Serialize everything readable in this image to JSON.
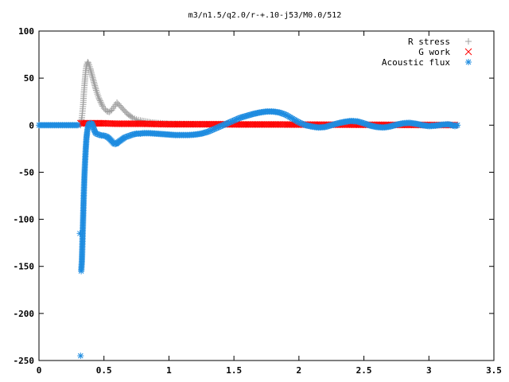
{
  "chart_data": {
    "type": "scatter",
    "title": "m3/n1.5/q2.0/r-+.10-j53/M0.0/512",
    "xlabel": "",
    "ylabel": "",
    "xlim": [
      0,
      3.5
    ],
    "ylim": [
      -250,
      100
    ],
    "x_ticks": [
      "0",
      "0.5",
      "1",
      "1.5",
      "2",
      "2.5",
      "3",
      "3.5"
    ],
    "y_ticks": [
      "100",
      "50",
      "0",
      "-50",
      "-100",
      "-150",
      "-200",
      "-250"
    ],
    "x_tick_values": [
      0,
      0.5,
      1,
      1.5,
      2,
      2.5,
      3,
      3.5
    ],
    "y_tick_values": [
      100,
      50,
      0,
      -50,
      -100,
      -150,
      -200,
      -250
    ],
    "grid": false,
    "legend_position": "top-right",
    "series": [
      {
        "name": "R stress",
        "marker": "plus",
        "color": "#a0a0a0",
        "x": [
          0.32,
          0.33,
          0.335,
          0.34,
          0.345,
          0.35,
          0.355,
          0.36,
          0.365,
          0.37,
          0.375,
          0.38,
          0.385,
          0.39,
          0.395,
          0.4,
          0.41,
          0.42,
          0.43,
          0.44,
          0.45,
          0.46,
          0.47,
          0.48,
          0.49,
          0.5,
          0.52,
          0.54,
          0.56,
          0.58,
          0.59,
          0.6,
          0.62,
          0.64,
          0.66,
          0.68,
          0.7,
          0.72,
          0.75,
          0.78,
          0.82,
          0.86,
          0.9,
          0.95,
          1.0,
          1.1,
          1.2,
          1.4,
          1.6,
          1.8,
          2.0,
          2.2,
          2.4,
          2.6,
          2.8,
          3.0,
          3.2
        ],
        "y": [
          0,
          8,
          15,
          22,
          33,
          42,
          50,
          58,
          62,
          65,
          67,
          66,
          64,
          62,
          60,
          57,
          52,
          47,
          42,
          37,
          33,
          29,
          26,
          23,
          20,
          18,
          15,
          14,
          16,
          20,
          22,
          24,
          21,
          18,
          15,
          12,
          10,
          8,
          6,
          5,
          4,
          3,
          2.5,
          2,
          1.5,
          1.2,
          1,
          0.8,
          0.7,
          0.7,
          0.6,
          0.5,
          0.5,
          0.4,
          0.4,
          0.3,
          0.3
        ]
      },
      {
        "name": "G work",
        "marker": "cross",
        "color": "#ff0000",
        "x": [
          0.32,
          0.35,
          0.38,
          0.4,
          0.45,
          0.5,
          0.6,
          0.7,
          0.8,
          0.9,
          1.0,
          1.1,
          1.2,
          1.3,
          1.4,
          1.5,
          1.6,
          1.7,
          1.8,
          1.9,
          2.0,
          2.1,
          2.2,
          2.3,
          2.4,
          2.5,
          2.6,
          2.7,
          2.8,
          2.9,
          3.0,
          3.1,
          3.2
        ],
        "y": [
          2,
          2,
          2,
          2,
          2,
          2,
          1.5,
          1.5,
          1.5,
          1.2,
          1,
          1,
          1,
          1,
          1,
          0.8,
          0.8,
          0.8,
          0.8,
          0.7,
          0.6,
          0.6,
          0.5,
          0.5,
          0.5,
          0.4,
          0.4,
          0.3,
          0.3,
          0.3,
          0.2,
          0.2,
          0.2
        ]
      },
      {
        "name": "Acoustic flux",
        "marker": "star",
        "color": "#1e8ce0",
        "x": [
          0,
          0.05,
          0.1,
          0.15,
          0.2,
          0.25,
          0.3,
          0.315,
          0.32,
          0.325,
          0.33,
          0.335,
          0.34,
          0.345,
          0.35,
          0.355,
          0.36,
          0.365,
          0.37,
          0.375,
          0.38,
          0.385,
          0.39,
          0.4,
          0.41,
          0.42,
          0.43,
          0.44,
          0.46,
          0.48,
          0.5,
          0.52,
          0.54,
          0.56,
          0.58,
          0.59,
          0.6,
          0.62,
          0.64,
          0.66,
          0.68,
          0.7,
          0.72,
          0.75,
          0.78,
          0.8,
          0.85,
          0.9,
          0.95,
          1.0,
          1.05,
          1.1,
          1.15,
          1.2,
          1.25,
          1.3,
          1.35,
          1.4,
          1.45,
          1.5,
          1.55,
          1.6,
          1.65,
          1.7,
          1.75,
          1.8,
          1.85,
          1.9,
          1.95,
          2.0,
          2.05,
          2.1,
          2.15,
          2.2,
          2.25,
          2.3,
          2.35,
          2.4,
          2.45,
          2.5,
          2.55,
          2.6,
          2.65,
          2.7,
          2.75,
          2.8,
          2.85,
          2.9,
          2.95,
          3.0,
          3.05,
          3.1,
          3.15,
          3.18,
          3.2,
          3.22
        ],
        "y": [
          0,
          0,
          0,
          0,
          0,
          0,
          0,
          -115,
          -245,
          -155,
          -145,
          -122,
          -97,
          -73,
          -53,
          -38,
          -25,
          -14,
          -8,
          -3,
          0,
          1,
          2,
          2,
          1,
          -3,
          -7,
          -9,
          -10,
          -11,
          -11,
          -12,
          -14,
          -17,
          -20,
          -20,
          -19,
          -17,
          -15,
          -13,
          -12,
          -11,
          -10,
          -9,
          -9,
          -8.5,
          -8.5,
          -9,
          -9.5,
          -10,
          -10.5,
          -10.5,
          -10.5,
          -10,
          -9,
          -7,
          -4,
          -1,
          2,
          5,
          8,
          10,
          12,
          13.5,
          14.5,
          14.5,
          13.5,
          11,
          7,
          3,
          0,
          -1.5,
          -2.5,
          -2,
          0,
          2,
          3.5,
          4.5,
          4,
          2,
          -0.5,
          -2,
          -2.5,
          -1.5,
          0.5,
          2,
          2.5,
          1.5,
          0,
          -1,
          -0.5,
          0.5,
          1,
          0,
          -1,
          0
        ]
      }
    ]
  }
}
